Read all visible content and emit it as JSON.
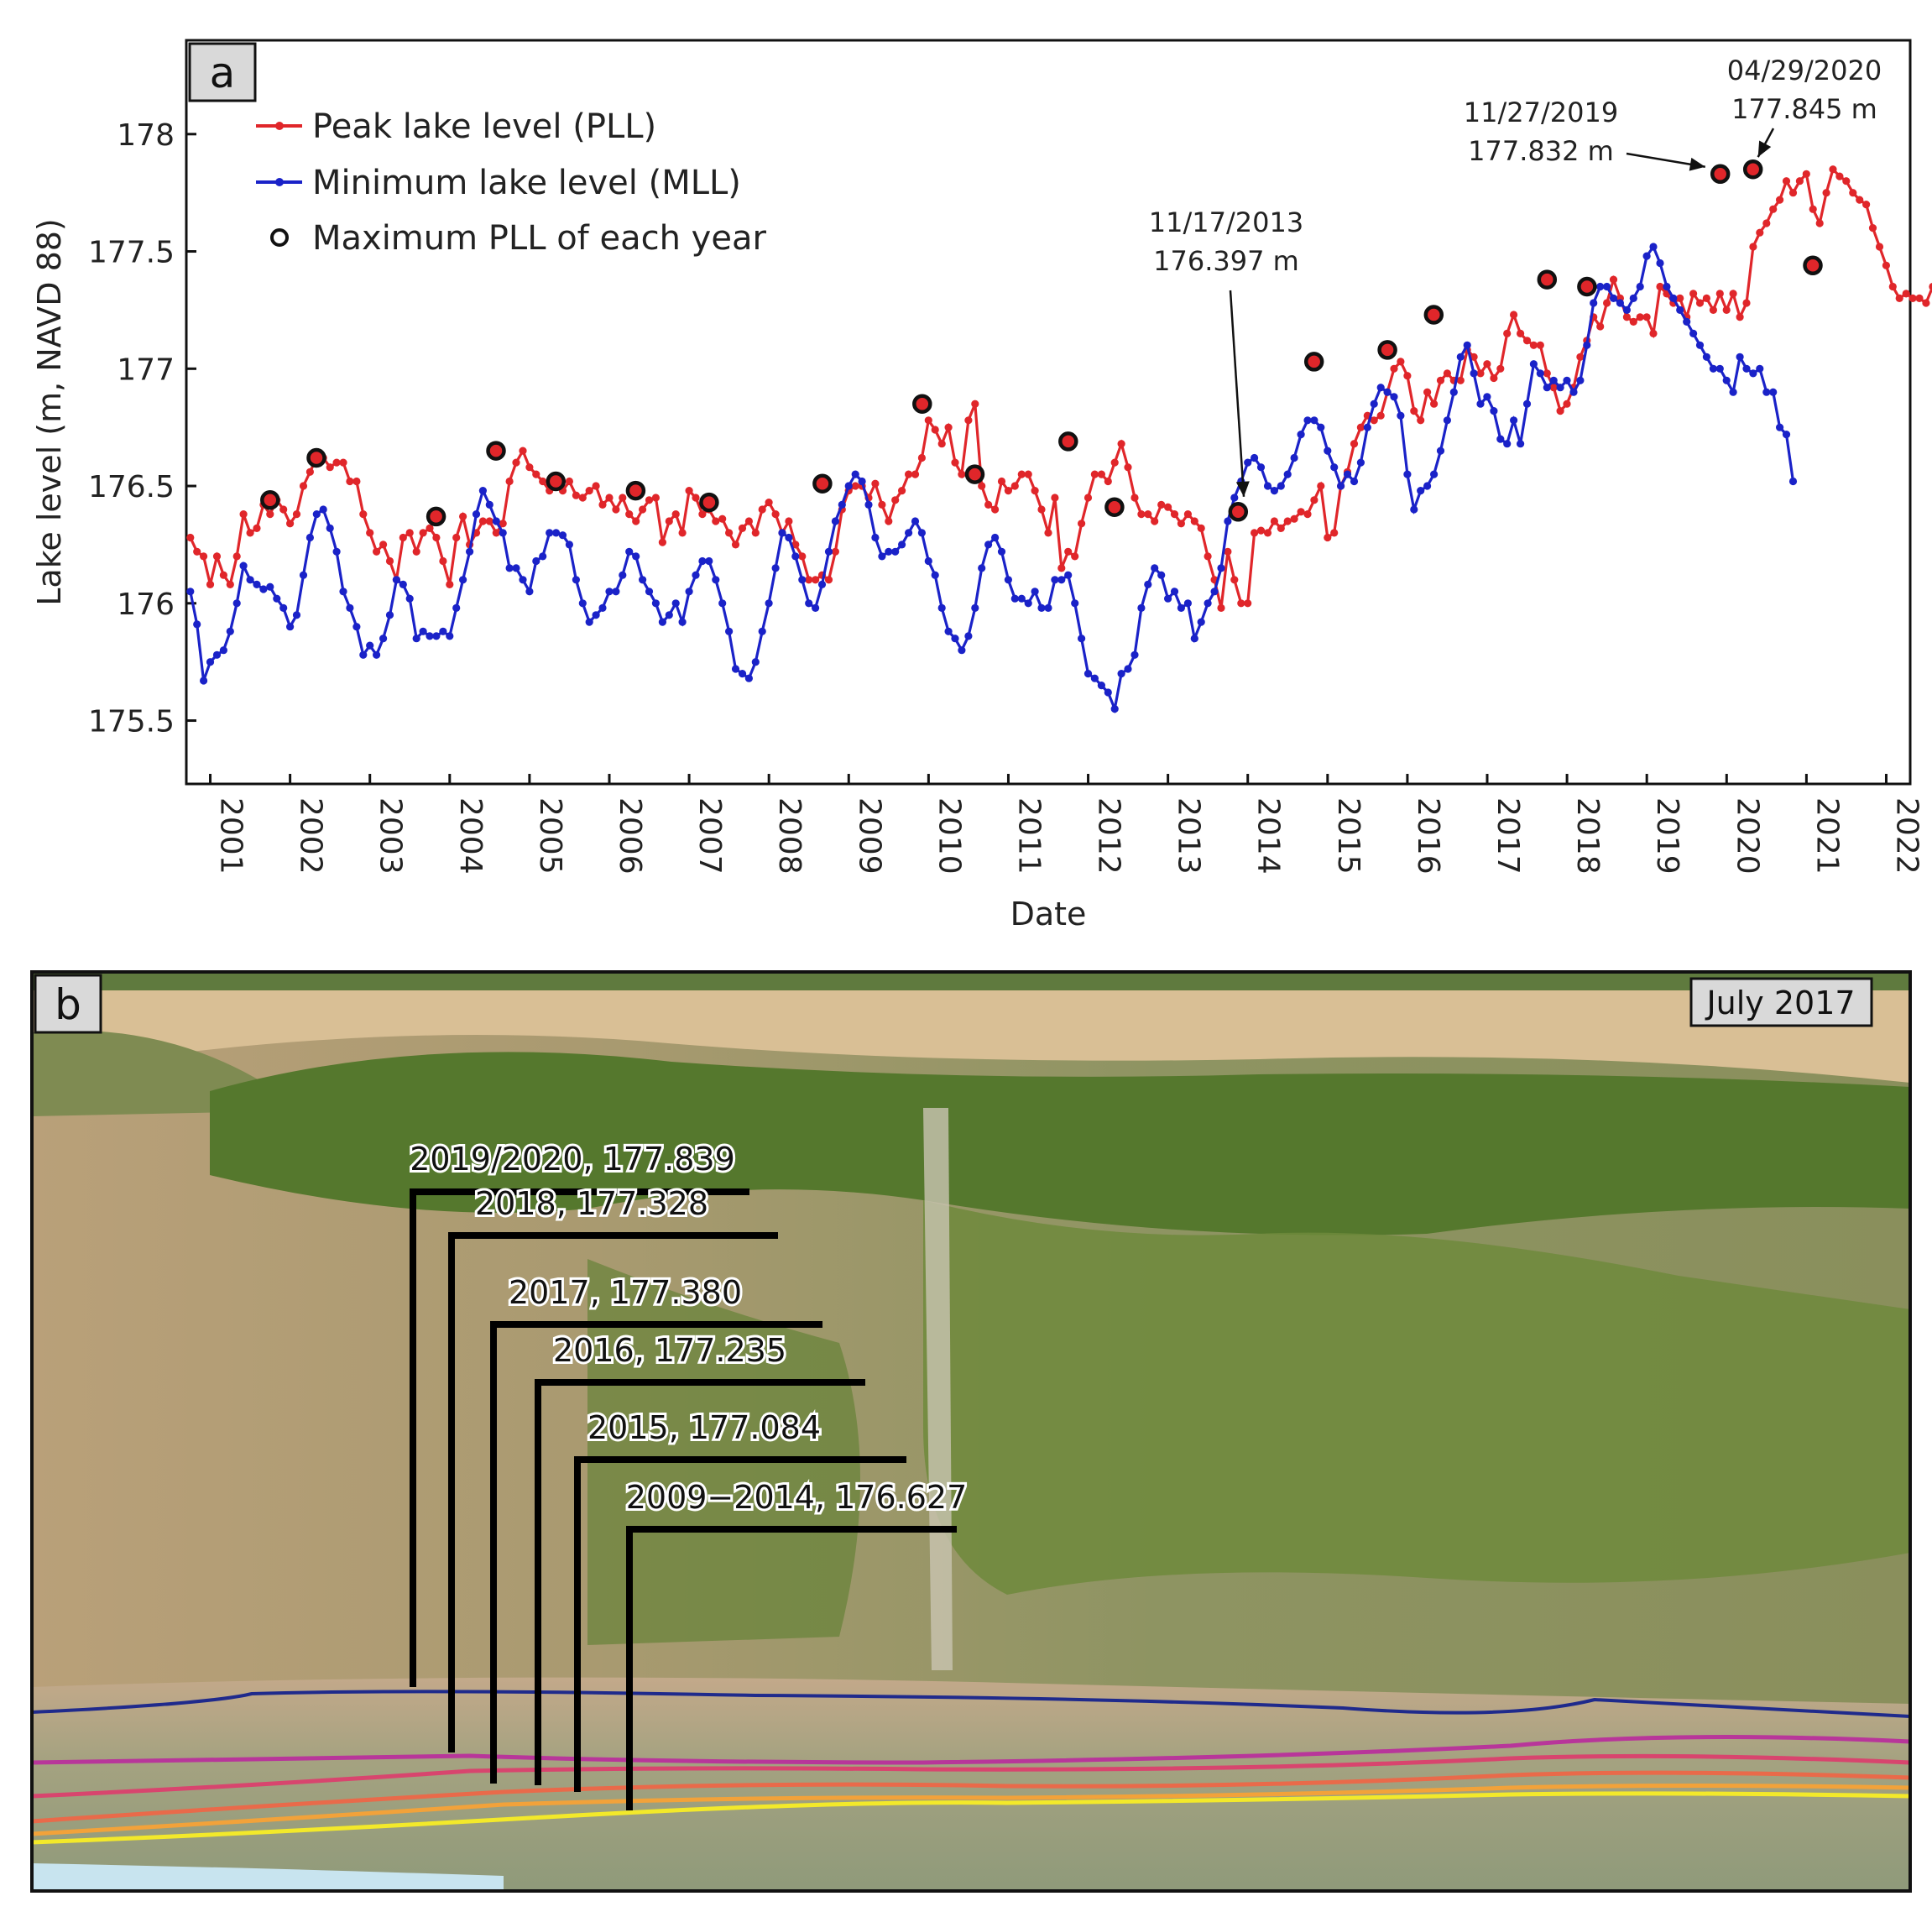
{
  "panel_a": {
    "tag": "a",
    "chart_data": {
      "type": "line",
      "xlabel": "Date",
      "ylabel": "Lake level (m, NAVD 88)",
      "xlim": [
        2000.7,
        2022.3
      ],
      "ylim": [
        175.23,
        178.4
      ],
      "x_ticks": [
        2001,
        2002,
        2003,
        2004,
        2005,
        2006,
        2007,
        2008,
        2009,
        2010,
        2011,
        2012,
        2013,
        2014,
        2015,
        2016,
        2017,
        2018,
        2019,
        2020,
        2021,
        2022
      ],
      "x_tick_labels": [
        "2001",
        "2002",
        "2003",
        "2004",
        "2005",
        "2006",
        "2007",
        "2008",
        "2009",
        "2010",
        "2011",
        "2012",
        "2013",
        "2014",
        "2015",
        "2016",
        "2017",
        "2018",
        "2019",
        "2020",
        "2021",
        "2022"
      ],
      "y_ticks": [
        175.5,
        176,
        176.5,
        177,
        177.5,
        178
      ],
      "y_tick_labels": [
        "175.5",
        "176",
        "176.5",
        "177",
        "177.5",
        "178"
      ],
      "grid": false,
      "legend_position": "top-left",
      "series": [
        {
          "name": "Peak lake level (PLL)",
          "color": "#e0262a",
          "x_start": 2000.75,
          "x_step": 0.08333,
          "values": [
            176.28,
            176.22,
            176.2,
            176.08,
            176.2,
            176.12,
            176.08,
            176.2,
            176.38,
            176.3,
            176.32,
            176.42,
            176.38,
            176.44,
            176.4,
            176.34,
            176.38,
            176.5,
            176.56,
            176.62,
            176.62,
            176.58,
            176.6,
            176.6,
            176.52,
            176.52,
            176.38,
            176.3,
            176.22,
            176.25,
            176.18,
            176.1,
            176.28,
            176.3,
            176.22,
            176.3,
            176.32,
            176.28,
            176.18,
            176.08,
            176.28,
            176.37,
            176.25,
            176.3,
            176.35,
            176.35,
            176.3,
            176.34,
            176.52,
            176.6,
            176.65,
            176.58,
            176.55,
            176.52,
            176.48,
            176.52,
            176.48,
            176.52,
            176.46,
            176.45,
            176.48,
            176.5,
            176.42,
            176.45,
            176.4,
            176.45,
            176.38,
            176.35,
            176.4,
            176.44,
            176.45,
            176.26,
            176.35,
            176.38,
            176.3,
            176.48,
            176.45,
            176.38,
            176.4,
            176.35,
            176.36,
            176.3,
            176.25,
            176.32,
            176.35,
            176.3,
            176.4,
            176.43,
            176.38,
            176.3,
            176.35,
            176.25,
            176.2,
            176.1,
            176.1,
            176.12,
            176.1,
            176.22,
            176.4,
            176.48,
            176.5,
            176.5,
            176.45,
            176.51,
            176.42,
            176.35,
            176.44,
            176.48,
            176.55,
            176.55,
            176.62,
            176.78,
            176.74,
            176.68,
            176.75,
            176.6,
            176.55,
            176.78,
            176.85,
            176.5,
            176.42,
            176.4,
            176.52,
            176.48,
            176.5,
            176.55,
            176.55,
            176.48,
            176.4,
            176.3,
            176.45,
            176.15,
            176.22,
            176.2,
            176.34,
            176.45,
            176.55,
            176.55,
            176.52,
            176.6,
            176.68,
            176.58,
            176.45,
            176.38,
            176.38,
            176.35,
            176.42,
            176.41,
            176.38,
            176.34,
            176.38,
            176.35,
            176.32,
            176.2,
            176.1,
            175.98,
            176.22,
            176.1,
            176.0,
            176.0,
            176.3,
            176.31,
            176.3,
            176.35,
            176.32,
            176.35,
            176.36,
            176.39,
            176.38,
            176.44,
            176.5,
            176.28,
            176.3,
            176.5,
            176.56,
            176.68,
            176.75,
            176.8,
            176.78,
            176.8,
            176.9,
            177.0,
            177.03,
            176.97,
            176.82,
            176.78,
            176.9,
            176.85,
            176.95,
            176.98,
            176.95,
            176.95,
            177.08,
            177.05,
            176.98,
            177.02,
            176.96,
            177.0,
            177.15,
            177.23,
            177.15,
            177.12,
            177.1,
            177.1,
            176.98,
            176.92,
            176.82,
            176.85,
            176.92,
            177.05,
            177.12,
            177.22,
            177.18,
            177.28,
            177.38,
            177.3,
            177.22,
            177.2,
            177.22,
            177.22,
            177.15,
            177.35,
            177.32,
            177.28,
            177.3,
            177.22,
            177.32,
            177.28,
            177.3,
            177.25,
            177.32,
            177.25,
            177.32,
            177.22,
            177.28,
            177.52,
            177.58,
            177.62,
            177.68,
            177.72,
            177.8,
            177.75,
            177.8,
            177.83,
            177.68,
            177.62,
            177.75,
            177.85,
            177.82,
            177.8,
            177.75,
            177.72,
            177.7,
            177.6,
            177.52,
            177.44,
            177.35,
            177.3,
            177.32,
            177.3,
            177.3,
            177.28,
            177.35,
            177.32,
            177.28,
            177.32,
            177.16,
            176.99
          ]
        },
        {
          "name": "Minimum lake level (MLL)",
          "color": "#1a22c8",
          "x_start": 2000.75,
          "x_step": 0.08333,
          "values": [
            176.05,
            175.91,
            175.67,
            175.75,
            175.78,
            175.8,
            175.88,
            176.0,
            176.16,
            176.1,
            176.08,
            176.06,
            176.07,
            176.02,
            175.98,
            175.9,
            175.95,
            176.12,
            176.28,
            176.38,
            176.4,
            176.32,
            176.22,
            176.05,
            175.98,
            175.9,
            175.78,
            175.82,
            175.78,
            175.85,
            175.95,
            176.1,
            176.08,
            176.02,
            175.85,
            175.88,
            175.86,
            175.86,
            175.88,
            175.86,
            175.98,
            176.1,
            176.22,
            176.38,
            176.48,
            176.42,
            176.35,
            176.3,
            176.15,
            176.15,
            176.1,
            176.05,
            176.18,
            176.2,
            176.3,
            176.3,
            176.29,
            176.25,
            176.1,
            176.0,
            175.92,
            175.95,
            175.98,
            176.05,
            176.05,
            176.12,
            176.22,
            176.2,
            176.1,
            176.05,
            176.0,
            175.92,
            175.95,
            176.0,
            175.92,
            176.05,
            176.12,
            176.18,
            176.18,
            176.1,
            176.0,
            175.88,
            175.72,
            175.7,
            175.68,
            175.75,
            175.88,
            176.0,
            176.15,
            176.3,
            176.28,
            176.2,
            176.1,
            176.0,
            175.98,
            176.08,
            176.22,
            176.35,
            176.42,
            176.5,
            176.55,
            176.52,
            176.42,
            176.28,
            176.2,
            176.22,
            176.22,
            176.25,
            176.3,
            176.35,
            176.3,
            176.18,
            176.12,
            175.98,
            175.88,
            175.85,
            175.8,
            175.86,
            175.98,
            176.15,
            176.25,
            176.28,
            176.22,
            176.1,
            176.02,
            176.02,
            176.0,
            176.05,
            175.98,
            175.98,
            176.1,
            176.1,
            176.12,
            176.0,
            175.85,
            175.7,
            175.68,
            175.65,
            175.62,
            175.55,
            175.7,
            175.72,
            175.78,
            175.98,
            176.08,
            176.15,
            176.12,
            176.02,
            176.05,
            175.98,
            176.0,
            175.85,
            175.92,
            176.0,
            176.05,
            176.15,
            176.35,
            176.45,
            176.52,
            176.6,
            176.62,
            176.58,
            176.5,
            176.48,
            176.5,
            176.55,
            176.62,
            176.72,
            176.78,
            176.78,
            176.75,
            176.65,
            176.58,
            176.5,
            176.55,
            176.52,
            176.6,
            176.75,
            176.85,
            176.92,
            176.9,
            176.88,
            176.8,
            176.55,
            176.4,
            176.48,
            176.5,
            176.55,
            176.65,
            176.78,
            176.9,
            177.05,
            177.1,
            176.98,
            176.85,
            176.88,
            176.82,
            176.7,
            176.68,
            176.78,
            176.68,
            176.85,
            177.02,
            176.98,
            176.92,
            176.95,
            176.92,
            176.95,
            176.9,
            176.95,
            177.1,
            177.28,
            177.35,
            177.35,
            177.3,
            177.28,
            177.25,
            177.3,
            177.35,
            177.48,
            177.52,
            177.45,
            177.35,
            177.3,
            177.25,
            177.2,
            177.15,
            177.1,
            177.05,
            177.0,
            177.0,
            176.95,
            176.9,
            177.05,
            177.0,
            176.98,
            177.0,
            176.9,
            176.9,
            176.75,
            176.72,
            176.52
          ]
        },
        {
          "name": "Maximum PLL of each year",
          "marker": "circle",
          "x": [
            2001.75,
            2002.33,
            2003.83,
            2004.58,
            2005.33,
            2006.33,
            2007.25,
            2008.67,
            2009.92,
            2010.58,
            2011.75,
            2012.33,
            2013.88,
            2014.83,
            2015.75,
            2016.33,
            2017.75,
            2018.25,
            2019.92,
            2020.33,
            2021.08
          ],
          "values": [
            176.44,
            176.62,
            176.37,
            176.65,
            176.52,
            176.48,
            176.43,
            176.51,
            176.85,
            176.55,
            176.69,
            176.41,
            176.39,
            177.03,
            177.08,
            177.23,
            177.38,
            177.35,
            177.83,
            177.85,
            177.44
          ]
        }
      ],
      "annotations": [
        {
          "date": "11/17/2013",
          "value_text": "176.397 m",
          "x": 2013.88,
          "y": 176.397
        },
        {
          "date": "11/27/2019",
          "value_text": "177.832 m",
          "x": 2019.9,
          "y": 177.832
        },
        {
          "date": "04/29/2020",
          "value_text": "177.845 m",
          "x": 2020.33,
          "y": 177.845
        }
      ]
    }
  },
  "panel_b": {
    "tag": "b",
    "date_badge": "July 2017",
    "shoreline_labels": [
      "2019/2020, 177.839",
      "2018, 177.328",
      "2017, 177.380",
      "2016, 177.235",
      "2015, 177.084",
      "2009−2014, 176.627"
    ],
    "shoreline_colors": [
      "#1f2a8c",
      "#b8369a",
      "#d8456e",
      "#e96a4a",
      "#f2a23a",
      "#f3e92a"
    ]
  }
}
